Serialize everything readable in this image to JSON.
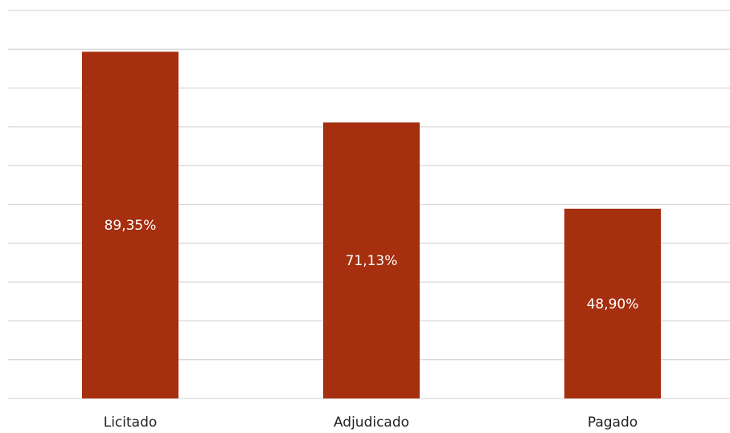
{
  "chart_data": {
    "type": "bar",
    "categories": [
      "Licitado",
      "Adjudicado",
      "Pagado"
    ],
    "values": [
      89.35,
      71.13,
      48.9
    ],
    "data_labels": [
      "89,35%",
      "71,13%",
      "48,90%"
    ],
    "ylim": [
      0,
      100
    ],
    "grid": true,
    "gridline_step": 10,
    "legend": "none",
    "colors": {
      "bar": "#a52f0f",
      "gridline": "#d9d9d9",
      "label": "#ffffff",
      "category": "#222222"
    }
  }
}
